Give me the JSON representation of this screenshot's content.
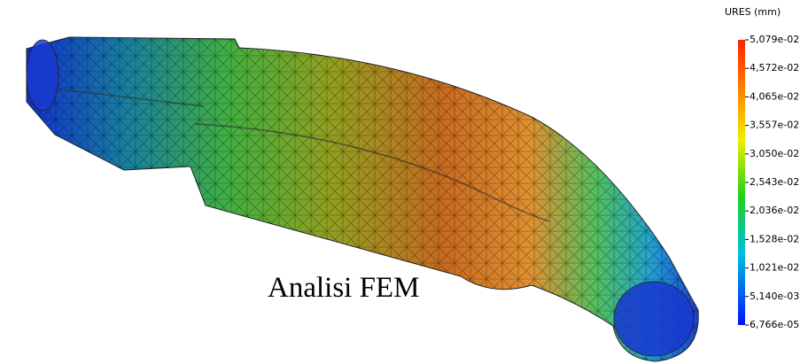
{
  "legend": {
    "title": "URES (mm)",
    "labels": [
      "5,079e-02",
      "4,572e-02",
      "4,065e-02",
      "3,557e-02",
      "3,050e-02",
      "2,543e-02",
      "2,036e-02",
      "1,528e-02",
      "1,021e-02",
      "5,140e-03",
      "6,766e-05"
    ]
  },
  "caption": "Analisi FEM"
}
